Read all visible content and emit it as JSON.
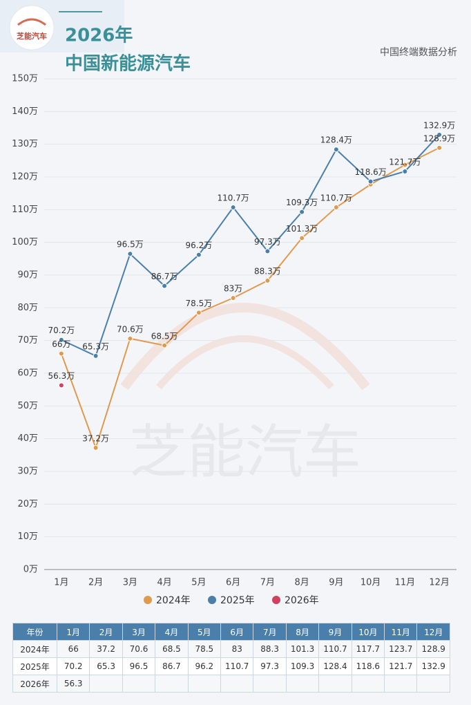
{
  "header": {
    "logo": "芝能汽车",
    "source": "中国终端数据分析",
    "watermark": "芝能汽车"
  },
  "chart_data": {
    "type": "line",
    "title": "2026年",
    "subtitle": "中国新能源汽车",
    "categories": [
      "1月",
      "2月",
      "3月",
      "4月",
      "5月",
      "6月",
      "7月",
      "8月",
      "9月",
      "10月",
      "11月",
      "12月"
    ],
    "series": [
      {
        "name": "2024年",
        "color": "#e09a4e",
        "values": [
          66,
          37.2,
          70.6,
          68.5,
          78.5,
          83,
          88.3,
          101.3,
          110.7,
          117.7,
          123.7,
          128.9
        ],
        "value_labels": [
          "66万",
          "37.2万",
          "70.6万",
          "68.5万",
          "78.5万",
          "83万",
          "88.3万",
          "101.3万",
          "110.7万",
          null,
          null,
          "128.9万"
        ]
      },
      {
        "name": "2025年",
        "color": "#4a7fab",
        "values": [
          70.2,
          65.3,
          96.5,
          86.7,
          96.2,
          110.7,
          97.3,
          109.3,
          128.4,
          118.6,
          121.7,
          132.9
        ],
        "value_labels": [
          "70.2万",
          "65.3万",
          "96.5万",
          "86.7万",
          "96.2万",
          "110.7万",
          "97.3万",
          "109.3万",
          "128.4万",
          "118.6万",
          "121.7万",
          "132.9万"
        ]
      },
      {
        "name": "2026年",
        "color": "#d2405e",
        "values": [
          56.3,
          null,
          null,
          null,
          null,
          null,
          null,
          null,
          null,
          null,
          null,
          null
        ],
        "value_labels": [
          "56.3万",
          null,
          null,
          null,
          null,
          null,
          null,
          null,
          null,
          null,
          null,
          null
        ]
      }
    ],
    "ylim": [
      0,
      150
    ],
    "yticks": [
      {
        "value": 0,
        "label": "0万"
      },
      {
        "value": 10,
        "label": "10万"
      },
      {
        "value": 20,
        "label": "20万"
      },
      {
        "value": 30,
        "label": "30万"
      },
      {
        "value": 40,
        "label": "40万"
      },
      {
        "value": 50,
        "label": "50万"
      },
      {
        "value": 60,
        "label": "60万"
      },
      {
        "value": 70,
        "label": "70万"
      },
      {
        "value": 80,
        "label": "80万"
      },
      {
        "value": 90,
        "label": "90万"
      },
      {
        "value": 100,
        "label": "100万"
      },
      {
        "value": 110,
        "label": "110万"
      },
      {
        "value": 120,
        "label": "120万"
      },
      {
        "value": 130,
        "label": "130万"
      },
      {
        "value": 140,
        "label": "140万"
      },
      {
        "value": 150,
        "label": "150万"
      }
    ],
    "grid": true,
    "legend": "bottom"
  },
  "table": {
    "header": "年份"
  }
}
